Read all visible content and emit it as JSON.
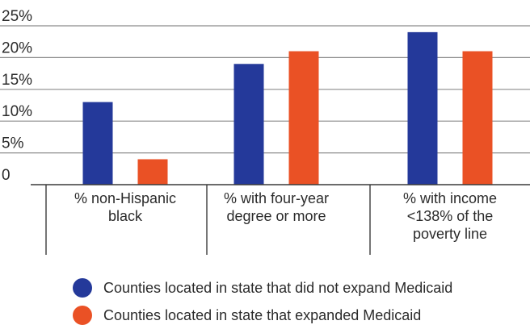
{
  "chart_data": {
    "type": "bar",
    "categories": [
      [
        "% non-Hispanic",
        "black"
      ],
      [
        "% with four-year",
        "degree or more"
      ],
      [
        "% with income",
        "<138% of the",
        "poverty line"
      ]
    ],
    "series": [
      {
        "name": "Counties located in state that did not expand Medicaid",
        "color": "#24399a",
        "values": [
          13,
          19,
          24
        ]
      },
      {
        "name": "Counties located in state that expanded Medicaid",
        "color": "#ea5125",
        "values": [
          4,
          21,
          21
        ]
      }
    ],
    "yticks": [
      "0",
      "5%",
      "10%",
      "15%",
      "20%",
      "25%"
    ],
    "ylim": [
      0,
      25
    ],
    "grid": true,
    "legend_position": "bottom"
  },
  "colors": {
    "grid": "#8c8c8c",
    "axis": "#3a3a3a",
    "text": "#2b2b2b"
  }
}
